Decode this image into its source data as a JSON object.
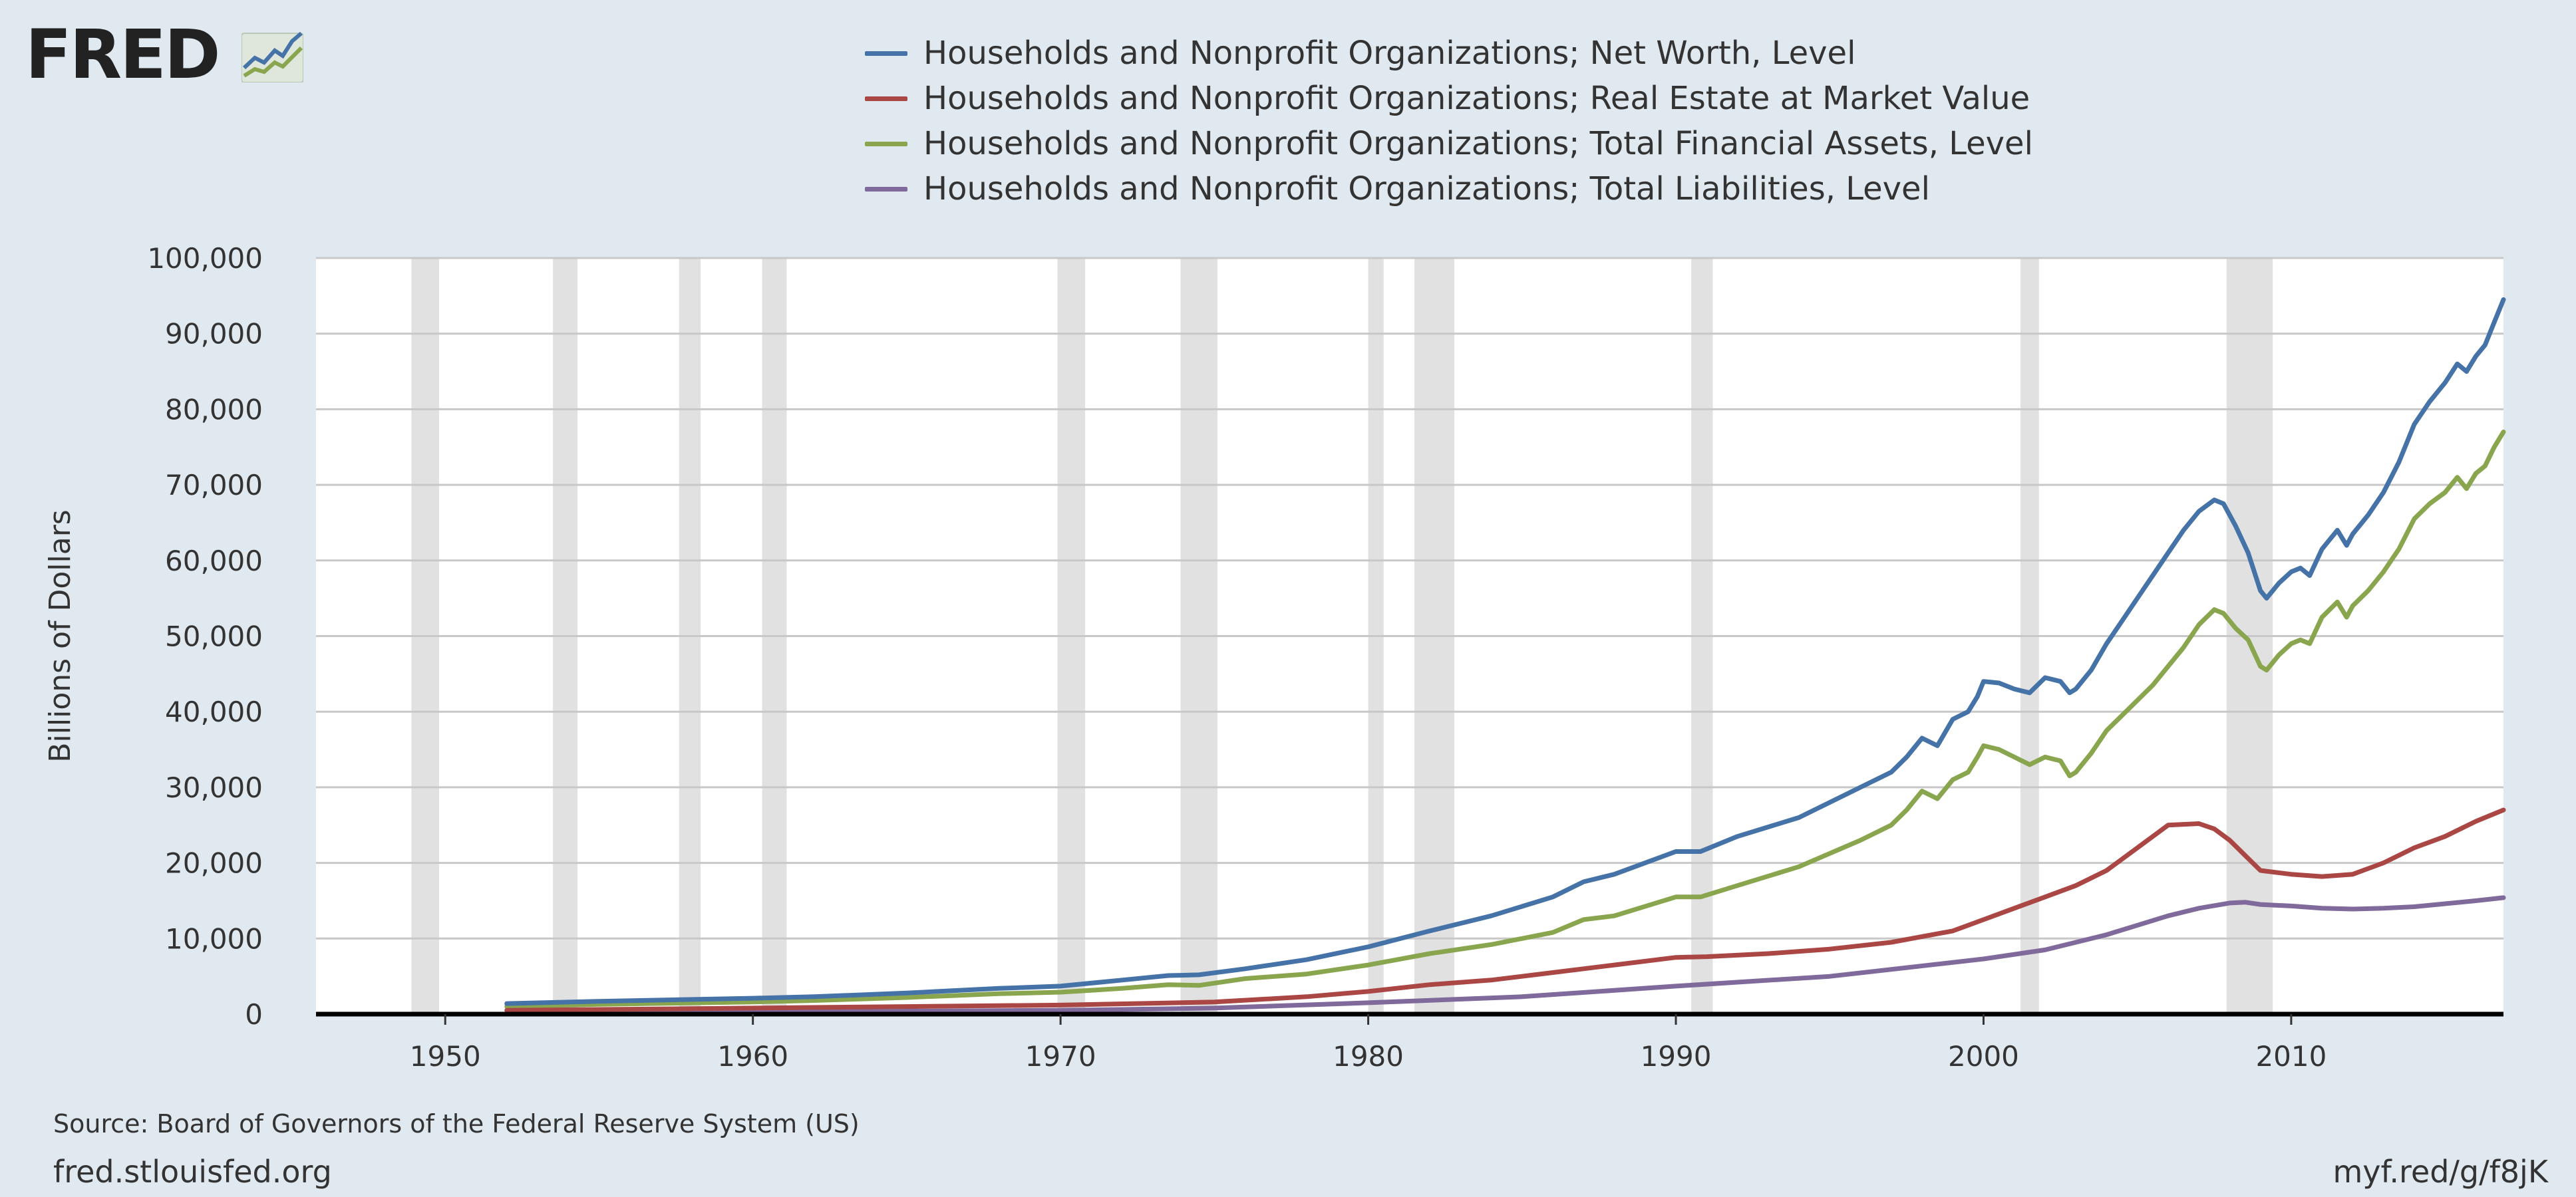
{
  "logo": {
    "text": "FRED",
    "icon": "fred-chart-logo-icon"
  },
  "source": "Source: Board of Governors of the Federal Reserve System (US)",
  "site": "fred.stlouisfed.org",
  "shortlink": "myf.red/g/f8jK",
  "chart_data": {
    "type": "line",
    "title": "",
    "xlabel": "",
    "ylabel": "Billions of Dollars",
    "xlim": [
      1945.8,
      2016.9
    ],
    "ylim": [
      0,
      100000
    ],
    "x_ticks": [
      1950,
      1960,
      1970,
      1980,
      1990,
      2000,
      2010
    ],
    "y_ticks": [
      0,
      10000,
      20000,
      30000,
      40000,
      50000,
      60000,
      70000,
      80000,
      90000,
      100000
    ],
    "y_tick_labels": [
      "0",
      "10,000",
      "20,000",
      "30,000",
      "40,000",
      "50,000",
      "60,000",
      "70,000",
      "80,000",
      "90,000",
      "100,000"
    ],
    "grid": "horizontal",
    "legend_position": "top",
    "recessions": [
      [
        1948.9,
        1949.8
      ],
      [
        1953.5,
        1954.3
      ],
      [
        1957.6,
        1958.3
      ],
      [
        1960.3,
        1961.1
      ],
      [
        1969.9,
        1970.8
      ],
      [
        1973.9,
        1975.1
      ],
      [
        1980.0,
        1980.5
      ],
      [
        1981.5,
        1982.8
      ],
      [
        1990.5,
        1991.2
      ],
      [
        2001.2,
        2001.8
      ],
      [
        2007.9,
        2009.4
      ]
    ],
    "recession_color": "#e1e1e1",
    "series": [
      {
        "name": "Households and Nonprofit Organizations; Net Worth, Level",
        "color": "#4572a7",
        "points": [
          [
            1952.0,
            1400
          ],
          [
            1955.0,
            1700
          ],
          [
            1960.0,
            2100
          ],
          [
            1962.0,
            2300
          ],
          [
            1965.0,
            2800
          ],
          [
            1968.0,
            3400
          ],
          [
            1970.0,
            3700
          ],
          [
            1972.0,
            4500
          ],
          [
            1973.5,
            5100
          ],
          [
            1974.5,
            5200
          ],
          [
            1976.0,
            6000
          ],
          [
            1978.0,
            7200
          ],
          [
            1980.0,
            8900
          ],
          [
            1982.0,
            11000
          ],
          [
            1984.0,
            13000
          ],
          [
            1986.0,
            15500
          ],
          [
            1987.0,
            17500
          ],
          [
            1988.0,
            18500
          ],
          [
            1990.0,
            21500
          ],
          [
            1990.8,
            21500
          ],
          [
            1992.0,
            23500
          ],
          [
            1994.0,
            26000
          ],
          [
            1996.0,
            30000
          ],
          [
            1997.0,
            32000
          ],
          [
            1997.5,
            34000
          ],
          [
            1998.0,
            36500
          ],
          [
            1998.5,
            35500
          ],
          [
            1999.0,
            39000
          ],
          [
            1999.5,
            40000
          ],
          [
            1999.8,
            42000
          ],
          [
            2000.0,
            44000
          ],
          [
            2000.5,
            43800
          ],
          [
            2001.0,
            43000
          ],
          [
            2001.5,
            42500
          ],
          [
            2002.0,
            44500
          ],
          [
            2002.5,
            44000
          ],
          [
            2002.8,
            42500
          ],
          [
            2003.0,
            43000
          ],
          [
            2003.5,
            45500
          ],
          [
            2004.0,
            49000
          ],
          [
            2004.5,
            52000
          ],
          [
            2005.0,
            55000
          ],
          [
            2005.5,
            58000
          ],
          [
            2006.0,
            61000
          ],
          [
            2006.5,
            64000
          ],
          [
            2007.0,
            66500
          ],
          [
            2007.5,
            68000
          ],
          [
            2007.8,
            67500
          ],
          [
            2008.2,
            64500
          ],
          [
            2008.6,
            61000
          ],
          [
            2009.0,
            56000
          ],
          [
            2009.2,
            55000
          ],
          [
            2009.6,
            57000
          ],
          [
            2010.0,
            58500
          ],
          [
            2010.3,
            59000
          ],
          [
            2010.6,
            58000
          ],
          [
            2011.0,
            61500
          ],
          [
            2011.5,
            64000
          ],
          [
            2011.8,
            62000
          ],
          [
            2012.0,
            63500
          ],
          [
            2012.5,
            66000
          ],
          [
            2013.0,
            69000
          ],
          [
            2013.5,
            73000
          ],
          [
            2014.0,
            78000
          ],
          [
            2014.5,
            81000
          ],
          [
            2015.0,
            83500
          ],
          [
            2015.4,
            86000
          ],
          [
            2015.7,
            85000
          ],
          [
            2016.0,
            87000
          ],
          [
            2016.3,
            88500
          ],
          [
            2016.6,
            91500
          ],
          [
            2016.9,
            94500
          ]
        ]
      },
      {
        "name": "Households and Nonprofit Organizations; Real Estate at Market Value",
        "color": "#aa4643",
        "points": [
          [
            1952.0,
            500
          ],
          [
            1960.0,
            800
          ],
          [
            1965.0,
            1000
          ],
          [
            1970.0,
            1200
          ],
          [
            1975.0,
            1600
          ],
          [
            1978.0,
            2300
          ],
          [
            1980.0,
            3000
          ],
          [
            1982.0,
            3900
          ],
          [
            1984.0,
            4500
          ],
          [
            1986.0,
            5500
          ],
          [
            1988.0,
            6500
          ],
          [
            1990.0,
            7500
          ],
          [
            1991.0,
            7600
          ],
          [
            1993.0,
            8000
          ],
          [
            1995.0,
            8600
          ],
          [
            1997.0,
            9500
          ],
          [
            1999.0,
            11000
          ],
          [
            2000.0,
            12500
          ],
          [
            2001.0,
            14000
          ],
          [
            2002.0,
            15500
          ],
          [
            2003.0,
            17000
          ],
          [
            2004.0,
            19000
          ],
          [
            2005.0,
            22000
          ],
          [
            2006.0,
            25000
          ],
          [
            2007.0,
            25200
          ],
          [
            2007.5,
            24500
          ],
          [
            2008.0,
            23000
          ],
          [
            2008.5,
            21000
          ],
          [
            2009.0,
            19000
          ],
          [
            2010.0,
            18500
          ],
          [
            2011.0,
            18200
          ],
          [
            2012.0,
            18500
          ],
          [
            2013.0,
            20000
          ],
          [
            2014.0,
            22000
          ],
          [
            2015.0,
            23500
          ],
          [
            2016.0,
            25500
          ],
          [
            2016.9,
            27000
          ]
        ]
      },
      {
        "name": "Households and Nonprofit Organizations; Total Financial Assets, Level",
        "color": "#89a54e",
        "points": [
          [
            1952.0,
            1000
          ],
          [
            1955.0,
            1300
          ],
          [
            1960.0,
            1600
          ],
          [
            1962.0,
            1800
          ],
          [
            1965.0,
            2200
          ],
          [
            1968.0,
            2700
          ],
          [
            1970.0,
            2900
          ],
          [
            1972.0,
            3400
          ],
          [
            1973.5,
            3900
          ],
          [
            1974.5,
            3800
          ],
          [
            1976.0,
            4700
          ],
          [
            1978.0,
            5300
          ],
          [
            1980.0,
            6500
          ],
          [
            1982.0,
            8000
          ],
          [
            1984.0,
            9200
          ],
          [
            1986.0,
            10800
          ],
          [
            1987.0,
            12500
          ],
          [
            1988.0,
            13000
          ],
          [
            1990.0,
            15500
          ],
          [
            1990.8,
            15500
          ],
          [
            1992.0,
            17000
          ],
          [
            1994.0,
            19500
          ],
          [
            1996.0,
            23000
          ],
          [
            1997.0,
            25000
          ],
          [
            1997.5,
            27000
          ],
          [
            1998.0,
            29500
          ],
          [
            1998.5,
            28500
          ],
          [
            1999.0,
            31000
          ],
          [
            1999.5,
            32000
          ],
          [
            1999.8,
            34000
          ],
          [
            2000.0,
            35500
          ],
          [
            2000.5,
            35000
          ],
          [
            2001.0,
            34000
          ],
          [
            2001.5,
            33000
          ],
          [
            2002.0,
            34000
          ],
          [
            2002.5,
            33500
          ],
          [
            2002.8,
            31500
          ],
          [
            2003.0,
            32000
          ],
          [
            2003.5,
            34500
          ],
          [
            2004.0,
            37500
          ],
          [
            2004.5,
            39500
          ],
          [
            2005.0,
            41500
          ],
          [
            2005.5,
            43500
          ],
          [
            2006.0,
            46000
          ],
          [
            2006.5,
            48500
          ],
          [
            2007.0,
            51500
          ],
          [
            2007.5,
            53500
          ],
          [
            2007.8,
            53000
          ],
          [
            2008.2,
            51000
          ],
          [
            2008.6,
            49500
          ],
          [
            2009.0,
            46000
          ],
          [
            2009.2,
            45500
          ],
          [
            2009.6,
            47500
          ],
          [
            2010.0,
            49000
          ],
          [
            2010.3,
            49500
          ],
          [
            2010.6,
            49000
          ],
          [
            2011.0,
            52500
          ],
          [
            2011.5,
            54500
          ],
          [
            2011.8,
            52500
          ],
          [
            2012.0,
            54000
          ],
          [
            2012.5,
            56000
          ],
          [
            2013.0,
            58500
          ],
          [
            2013.5,
            61500
          ],
          [
            2014.0,
            65500
          ],
          [
            2014.5,
            67500
          ],
          [
            2015.0,
            69000
          ],
          [
            2015.4,
            71000
          ],
          [
            2015.7,
            69500
          ],
          [
            2016.0,
            71500
          ],
          [
            2016.3,
            72500
          ],
          [
            2016.6,
            75000
          ],
          [
            2016.9,
            77000
          ]
        ]
      },
      {
        "name": "Households and Nonprofit Organizations; Total Liabilities, Level",
        "color": "#80699b",
        "points": [
          [
            1952.0,
            100
          ],
          [
            1960.0,
            250
          ],
          [
            1965.0,
            400
          ],
          [
            1970.0,
            500
          ],
          [
            1975.0,
            800
          ],
          [
            1980.0,
            1500
          ],
          [
            1985.0,
            2300
          ],
          [
            1990.0,
            3700
          ],
          [
            1995.0,
            5000
          ],
          [
            2000.0,
            7300
          ],
          [
            2002.0,
            8500
          ],
          [
            2004.0,
            10500
          ],
          [
            2006.0,
            13000
          ],
          [
            2007.0,
            14000
          ],
          [
            2008.0,
            14700
          ],
          [
            2008.5,
            14800
          ],
          [
            2009.0,
            14500
          ],
          [
            2010.0,
            14300
          ],
          [
            2011.0,
            14000
          ],
          [
            2012.0,
            13900
          ],
          [
            2013.0,
            14000
          ],
          [
            2014.0,
            14200
          ],
          [
            2015.0,
            14600
          ],
          [
            2016.0,
            15000
          ],
          [
            2016.9,
            15400
          ]
        ]
      }
    ]
  }
}
